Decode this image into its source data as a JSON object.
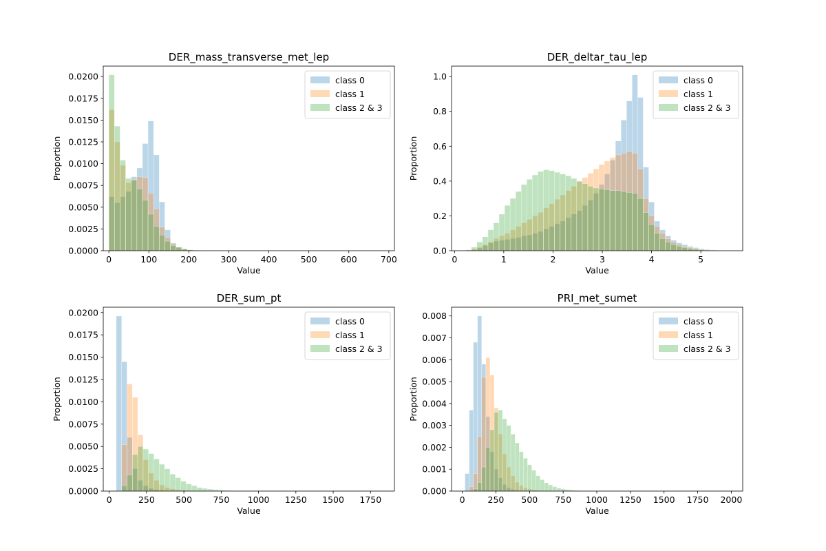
{
  "chart_data": [
    {
      "type": "bar",
      "title": "DER_mass_transverse_met_lep",
      "xlabel": "Value",
      "ylabel": "Proportion",
      "xlim": [
        -14,
        714
      ],
      "ylim": [
        0,
        0.0212
      ],
      "xticks": [
        0,
        100,
        200,
        300,
        400,
        500,
        600,
        700
      ],
      "xtick_labels": [
        "0",
        "100",
        "200",
        "300",
        "400",
        "500",
        "600",
        "700"
      ],
      "yticks": [
        0,
        0.0025,
        0.005,
        0.0075,
        0.01,
        0.0125,
        0.015,
        0.0175,
        0.02
      ],
      "ytick_labels": [
        "0.0000",
        "0.0025",
        "0.0050",
        "0.0075",
        "0.0100",
        "0.0125",
        "0.0150",
        "0.0175",
        "0.0200"
      ],
      "legend_position": "top-right",
      "series": [
        {
          "name": "class 0",
          "color": "#1f77b4",
          "bin_start": 0,
          "bin_width": 14,
          "values": [
            0.0062,
            0.0055,
            0.0062,
            0.0068,
            0.0085,
            0.0095,
            0.0123,
            0.0149,
            0.011,
            0.0056,
            0.0024,
            0.0009,
            0.0004,
            0.0002,
            0.0001,
            5e-05,
            3e-05,
            2e-05
          ]
        },
        {
          "name": "class 1",
          "color": "#ff7f0e",
          "bin_start": 0,
          "bin_width": 14,
          "values": [
            0.0162,
            0.0125,
            0.0098,
            0.0078,
            0.0082,
            0.0085,
            0.0084,
            0.0066,
            0.0048,
            0.0027,
            0.0015,
            0.0008,
            0.0004,
            0.0002,
            0.0001,
            5e-05,
            3e-05,
            2e-05
          ]
        },
        {
          "name": "class 2 & 3",
          "color": "#2ca02c",
          "bin_start": 0,
          "bin_width": 14,
          "values": [
            0.0202,
            0.0143,
            0.0104,
            0.0083,
            0.0081,
            0.0071,
            0.0058,
            0.0042,
            0.0028,
            0.0018,
            0.0011,
            0.0006,
            0.0004,
            0.0002,
            0.0001,
            6e-05,
            3e-05,
            2e-05
          ]
        }
      ]
    },
    {
      "type": "bar",
      "title": "DER_deltar_tau_lep",
      "xlabel": "Value",
      "ylabel": "Proportion",
      "xlim": [
        -0.06,
        5.85
      ],
      "ylim": [
        0,
        1.06
      ],
      "xticks": [
        0,
        1,
        2,
        3,
        4,
        5
      ],
      "xtick_labels": [
        "0",
        "1",
        "2",
        "3",
        "4",
        "5"
      ],
      "yticks": [
        0,
        0.2,
        0.4,
        0.6,
        0.8,
        1.0
      ],
      "ytick_labels": [
        "0.0",
        "0.2",
        "0.4",
        "0.6",
        "0.8",
        "1.0"
      ],
      "legend_position": "top-right",
      "series": [
        {
          "name": "class 0",
          "color": "#1f77b4",
          "bin_start": 0.23,
          "bin_width": 0.1125,
          "values": [
            0.001,
            0.005,
            0.015,
            0.03,
            0.045,
            0.055,
            0.06,
            0.065,
            0.07,
            0.075,
            0.085,
            0.09,
            0.1,
            0.11,
            0.125,
            0.14,
            0.155,
            0.17,
            0.19,
            0.21,
            0.23,
            0.26,
            0.29,
            0.33,
            0.38,
            0.44,
            0.52,
            0.63,
            0.75,
            0.86,
            1.01,
            0.88,
            0.48,
            0.28,
            0.17,
            0.12,
            0.085,
            0.06,
            0.045,
            0.035,
            0.025,
            0.018,
            0.012,
            0.008,
            0.005,
            0.003,
            0.002,
            0.001,
            0.0005,
            0.0003
          ]
        },
        {
          "name": "class 1",
          "color": "#ff7f0e",
          "bin_start": 0.23,
          "bin_width": 0.1125,
          "values": [
            0.003,
            0.01,
            0.02,
            0.035,
            0.05,
            0.07,
            0.085,
            0.1,
            0.12,
            0.14,
            0.16,
            0.18,
            0.2,
            0.22,
            0.245,
            0.27,
            0.295,
            0.32,
            0.345,
            0.37,
            0.395,
            0.42,
            0.445,
            0.47,
            0.495,
            0.515,
            0.535,
            0.55,
            0.56,
            0.57,
            0.56,
            0.47,
            0.3,
            0.2,
            0.14,
            0.1,
            0.07,
            0.05,
            0.035,
            0.025,
            0.018,
            0.012,
            0.008,
            0.005,
            0.003,
            0.002,
            0.001,
            0.0006,
            0.0003,
            0.0001
          ]
        },
        {
          "name": "class 2 & 3",
          "color": "#2ca02c",
          "bin_start": 0.23,
          "bin_width": 0.1125,
          "values": [
            0.005,
            0.02,
            0.05,
            0.08,
            0.12,
            0.16,
            0.21,
            0.26,
            0.3,
            0.34,
            0.38,
            0.41,
            0.435,
            0.455,
            0.465,
            0.46,
            0.45,
            0.44,
            0.43,
            0.415,
            0.4,
            0.385,
            0.37,
            0.36,
            0.355,
            0.35,
            0.345,
            0.345,
            0.34,
            0.335,
            0.33,
            0.3,
            0.22,
            0.15,
            0.1,
            0.07,
            0.05,
            0.035,
            0.025,
            0.018,
            0.012,
            0.008,
            0.005,
            0.003,
            0.002,
            0.001,
            0.0006,
            0.0003,
            0.0001,
            5e-05
          ]
        }
      ]
    },
    {
      "type": "bar",
      "title": "DER_sum_pt",
      "xlabel": "Value",
      "ylabel": "Proportion",
      "xlim": [
        -40,
        1910
      ],
      "ylim": [
        0,
        0.0206
      ],
      "xticks": [
        0,
        250,
        500,
        750,
        1000,
        1250,
        1500,
        1750
      ],
      "xtick_labels": [
        "0",
        "250",
        "500",
        "750",
        "1000",
        "1250",
        "1500",
        "1750"
      ],
      "yticks": [
        0,
        0.0025,
        0.005,
        0.0075,
        0.01,
        0.0125,
        0.015,
        0.0175,
        0.02
      ],
      "ytick_labels": [
        "0.0000",
        "0.0025",
        "0.0050",
        "0.0075",
        "0.0100",
        "0.0125",
        "0.0150",
        "0.0175",
        "0.0200"
      ],
      "legend_position": "top-right",
      "series": [
        {
          "name": "class 0",
          "color": "#1f77b4",
          "bin_start": 47,
          "bin_width": 36,
          "values": [
            0.0196,
            0.0145,
            0.006,
            0.0025,
            0.0012,
            0.0006,
            0.0003,
            0.00015,
            8e-05,
            4e-05,
            2e-05
          ]
        },
        {
          "name": "class 1",
          "color": "#ff7f0e",
          "bin_start": 83,
          "bin_width": 36,
          "values": [
            0.0052,
            0.012,
            0.0105,
            0.0063,
            0.0035,
            0.002,
            0.0012,
            0.0007,
            0.0004,
            0.00025,
            0.00015,
            0.0001,
            5e-05,
            3e-05,
            2e-05
          ]
        },
        {
          "name": "class 2 & 3",
          "color": "#2ca02c",
          "bin_start": 83,
          "bin_width": 36,
          "values": [
            0.0006,
            0.0018,
            0.0041,
            0.005,
            0.0047,
            0.0042,
            0.0036,
            0.003,
            0.0025,
            0.0019,
            0.0015,
            0.0011,
            0.0008,
            0.0006,
            0.0004,
            0.0003,
            0.00022,
            0.00015,
            0.0001,
            7e-05,
            5e-05,
            3e-05,
            2e-05
          ]
        }
      ]
    },
    {
      "type": "bar",
      "title": "PRI_met_sumet",
      "xlabel": "Value",
      "ylabel": "Proportion",
      "xlim": [
        -80,
        2085
      ],
      "ylim": [
        0,
        0.0084
      ],
      "xticks": [
        0,
        250,
        500,
        750,
        1000,
        1250,
        1500,
        1750,
        2000
      ],
      "xtick_labels": [
        "0",
        "250",
        "500",
        "750",
        "1000",
        "1250",
        "1500",
        "1750",
        "2000"
      ],
      "yticks": [
        0,
        0.001,
        0.002,
        0.003,
        0.004,
        0.005,
        0.006,
        0.007,
        0.008
      ],
      "ytick_labels": [
        "0.000",
        "0.001",
        "0.002",
        "0.003",
        "0.004",
        "0.005",
        "0.006",
        "0.007",
        "0.008"
      ],
      "legend_position": "top-right",
      "series": [
        {
          "name": "class 0",
          "color": "#1f77b4",
          "bin_start": 20,
          "bin_width": 31,
          "values": [
            0.0008,
            0.0037,
            0.0068,
            0.008,
            0.0058,
            0.0034,
            0.0018,
            0.001,
            0.0006,
            0.0003,
            0.00015,
            8e-05,
            4e-05,
            2e-05
          ]
        },
        {
          "name": "class 1",
          "color": "#ff7f0e",
          "bin_start": 51,
          "bin_width": 31,
          "values": [
            0.0002,
            0.0008,
            0.0025,
            0.0052,
            0.0061,
            0.0053,
            0.0038,
            0.0026,
            0.0017,
            0.0011,
            0.0007,
            0.0004,
            0.00025,
            0.00015,
            0.0001,
            5e-05,
            3e-05
          ]
        },
        {
          "name": "class 2 & 3",
          "color": "#2ca02c",
          "bin_start": 82,
          "bin_width": 31,
          "values": [
            0.0001,
            0.0004,
            0.0011,
            0.002,
            0.0028,
            0.0036,
            0.0037,
            0.0033,
            0.003,
            0.0026,
            0.0022,
            0.0018,
            0.0015,
            0.0012,
            0.00095,
            0.0007,
            0.00052,
            0.00038,
            0.00028,
            0.0002,
            0.00014,
            0.0001,
            7e-05,
            5e-05,
            3e-05,
            2e-05
          ]
        }
      ]
    }
  ]
}
